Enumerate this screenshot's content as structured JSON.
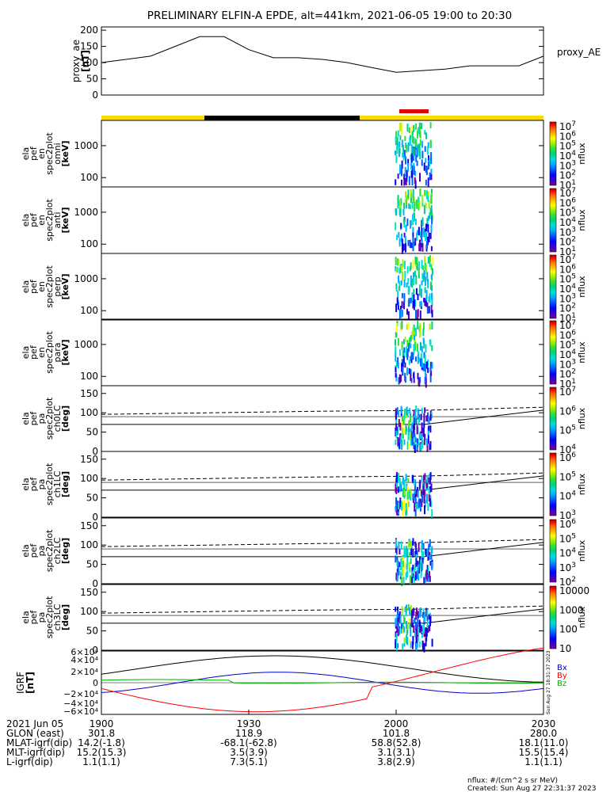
{
  "title": "PRELIMINARY ELFIN-A EPDE, alt=441km, 2021-06-05 19:00 to 20:30",
  "colors": {
    "bar_yellow": "#ffdc00",
    "bar_black": "#000000",
    "bar_red": "#e00000",
    "colorbar": [
      "#7a00a0",
      "#3c00d0",
      "#0000ff",
      "#0060ff",
      "#00b0ff",
      "#00e0d0",
      "#00d080",
      "#30e030",
      "#a0f000",
      "#ffff00",
      "#ffb000",
      "#ff6000",
      "#ff0000",
      "#c00000"
    ]
  },
  "panels": {
    "ae": {
      "ylabel": [
        "proxy_ae",
        "[nT]"
      ],
      "legend": "proxy_AE",
      "ticks": [
        "200",
        "150",
        "100",
        "50",
        "0"
      ]
    },
    "energy": [
      {
        "ylabel": [
          "ela",
          "pef",
          "en",
          "spec2plot",
          "omni",
          "[keV]"
        ],
        "ticks": [
          "1000",
          "100"
        ],
        "cb_unit": "nflux"
      },
      {
        "ylabel": [
          "ela",
          "pef",
          "en",
          "spec2plot",
          "anti",
          "[keV]"
        ],
        "ticks": [
          "1000",
          "100"
        ],
        "cb_unit": "nflux"
      },
      {
        "ylabel": [
          "ela",
          "pef",
          "en",
          "spec2plot",
          "perp",
          "[keV]"
        ],
        "ticks": [
          "1000",
          "100"
        ],
        "cb_unit": "nflux"
      },
      {
        "ylabel": [
          "ela",
          "pef",
          "en",
          "spec2plot",
          "para",
          "[keV]"
        ],
        "ticks": [
          "1000",
          "100"
        ],
        "cb_unit": "nflux"
      }
    ],
    "pa": [
      {
        "ylabel": [
          "ela",
          "pef",
          "pa",
          "spec2plot",
          "ch0LC",
          "[deg]"
        ],
        "ticks": [
          "150",
          "100",
          "50",
          "0"
        ],
        "cb_unit": "nflux"
      },
      {
        "ylabel": [
          "ela",
          "pef",
          "pa",
          "spec2plot",
          "ch1LC",
          "[deg]"
        ],
        "ticks": [
          "150",
          "100",
          "50",
          "0"
        ],
        "cb_unit": "nflux"
      },
      {
        "ylabel": [
          "ela",
          "pef",
          "pa",
          "spec2plot",
          "ch2LC",
          "[deg]"
        ],
        "ticks": [
          "150",
          "100",
          "50",
          "0"
        ],
        "cb_unit": "nflux"
      },
      {
        "ylabel": [
          "ela",
          "pef",
          "pa",
          "spec2plot",
          "ch3LC",
          "[deg]"
        ],
        "ticks": [
          "150",
          "100",
          "50",
          "0"
        ],
        "cb_unit": "nflux"
      }
    ],
    "igrf": {
      "ylabel": [
        "IGRF",
        "[nT]"
      ],
      "legend": [
        "Bx",
        "By",
        "Bz"
      ]
    }
  },
  "colorbar_labels": {
    "energy": [
      "10^7",
      "10^6",
      "10^5",
      "10^4",
      "10^3",
      "10^2",
      "10^1"
    ],
    "pa0": [
      "10^7",
      "10^6",
      "10^5",
      "10^4"
    ],
    "pa1": [
      "10^6",
      "10^5",
      "10^4",
      "10^3"
    ],
    "pa2": [
      "10^6",
      "10^5",
      "10^4",
      "10^3",
      "10^2"
    ],
    "pa3": [
      "10000",
      "1000",
      "100",
      "10"
    ]
  },
  "footer": {
    "rows": [
      {
        "label": "2021 Jun 05",
        "values": [
          "1900",
          "1930",
          "2000",
          "2030"
        ]
      },
      {
        "label": "GLON (east)",
        "values": [
          "301.8",
          "118.9",
          "101.8",
          "280.0"
        ]
      },
      {
        "label": "MLAT-igrf(dip)",
        "values": [
          "14.2(-1.8)",
          "-68.1(-62.8)",
          "58.8(52.8)",
          "18.1(11.0)"
        ]
      },
      {
        "label": "MLT-igrf(dip)",
        "values": [
          "15.2(15.3)",
          "3.5(3.9)",
          "3.1(3.1)",
          "15.5(15.4)"
        ]
      },
      {
        "label": "L-igrf(dip)",
        "values": [
          "1.1(1.1)",
          "7.3(5.1)",
          "3.8(2.9)",
          "1.1(1.1)"
        ]
      }
    ],
    "nflux_units": "nflux: #/(cm^2 s sr MeV)",
    "created": "Created: Sun Aug 27 22:31:37 2023",
    "side_stamp": "Sun Aug 27 18:31:37 2023"
  },
  "chart_data": [
    {
      "type": "line",
      "series": [
        {
          "name": "proxy_AE",
          "x": [
            "19:00",
            "19:05",
            "19:10",
            "19:15",
            "19:20",
            "19:25",
            "19:30",
            "19:35",
            "19:40",
            "19:45",
            "19:50",
            "19:55",
            "20:00",
            "20:05",
            "20:10",
            "20:15",
            "20:20",
            "20:25",
            "20:30"
          ],
          "values": [
            100,
            110,
            120,
            150,
            180,
            180,
            140,
            115,
            115,
            110,
            100,
            85,
            70,
            75,
            80,
            90,
            90,
            90,
            120
          ]
        }
      ],
      "ylabel": "proxy_ae [nT]",
      "ylim": [
        0,
        210
      ]
    },
    {
      "type": "line",
      "series": [
        {
          "name": "Bx",
          "color": "#000000"
        },
        {
          "name": "By",
          "color": "#0000c8"
        },
        {
          "name": "Bz",
          "color": "#ff0000"
        }
      ],
      "ylabel": "IGRF [nT]",
      "ylim": [
        -60000,
        60000
      ]
    }
  ]
}
